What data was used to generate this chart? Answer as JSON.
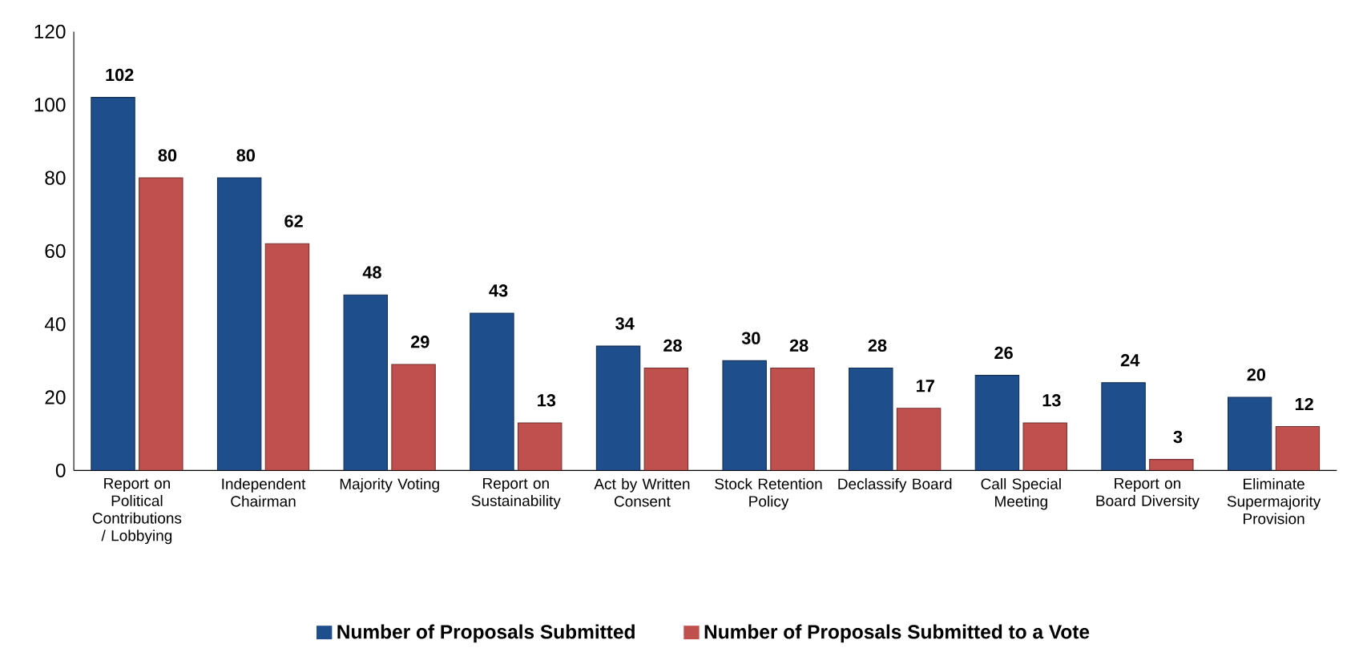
{
  "chart_data": {
    "type": "bar",
    "categories": [
      "Report on Political Contributions / Lobbying",
      "Independent Chairman",
      "Majority Voting",
      "Report on Sustainability",
      "Act by Written Consent",
      "Stock Retention Policy",
      "Declassify Board",
      "Call Special Meeting",
      "Report on Board Diversity",
      "Eliminate Supermajority Provision"
    ],
    "series": [
      {
        "name": "Number of Proposals Submitted",
        "color": "#1f4e8c",
        "values": [
          102,
          80,
          48,
          43,
          34,
          30,
          28,
          26,
          24,
          20
        ]
      },
      {
        "name": "Number of Proposals Submitted to a Vote",
        "color": "#c0504d",
        "values": [
          80,
          62,
          29,
          13,
          28,
          28,
          17,
          13,
          3,
          12
        ]
      }
    ],
    "ylim": [
      0,
      120
    ],
    "yticks": [
      0,
      20,
      40,
      60,
      80,
      100,
      120
    ],
    "data_labels": true,
    "legend": "bottom"
  }
}
